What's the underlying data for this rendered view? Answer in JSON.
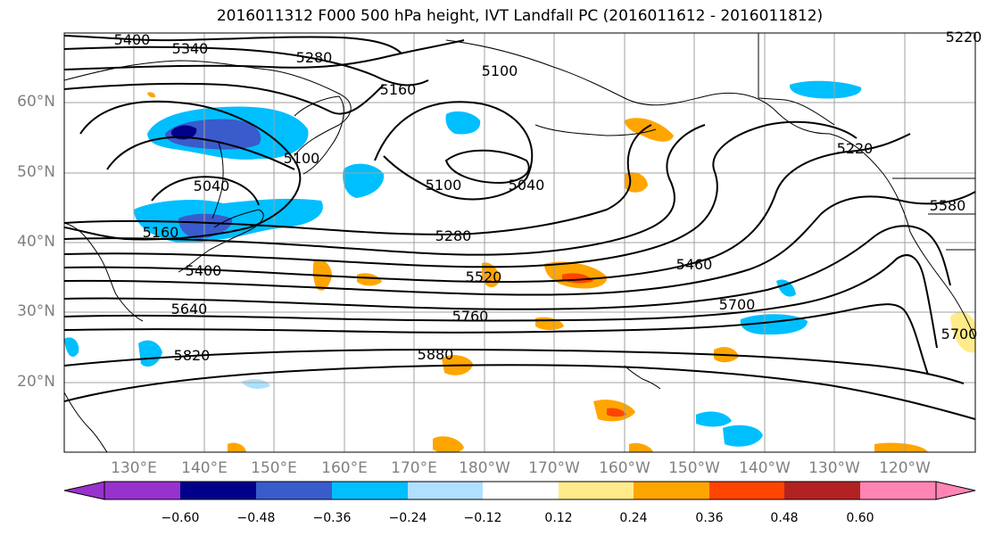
{
  "title": "2016011312 F000 500 hPa height, IVT Landfall PC (2016011612 - 2016011812)",
  "lat_labels": [
    "60°N",
    "50°N",
    "40°N",
    "30°N",
    "20°N"
  ],
  "lon_labels": [
    "130°E",
    "140°E",
    "150°E",
    "160°E",
    "170°E",
    "180°W",
    "170°W",
    "160°W",
    "150°W",
    "140°W",
    "130°W",
    "120°W"
  ],
  "contour_labels": [
    "5400",
    "5340",
    "5280",
    "5100",
    "5160",
    "5100",
    "5040",
    "5100",
    "5040",
    "5160",
    "5280",
    "5400",
    "5520",
    "5460",
    "5640",
    "5760",
    "5700",
    "5820",
    "5880",
    "5580",
    "5700",
    "5220",
    "5220"
  ],
  "colorbar": {
    "tick_labels": [
      "−0.60",
      "−0.48",
      "−0.36",
      "−0.24",
      "−0.12",
      "0.12",
      "0.24",
      "0.36",
      "0.48",
      "0.60"
    ],
    "colors": [
      "#9932cc",
      "#00008b",
      "#3a5bcc",
      "#00bfff",
      "#b0e0ff",
      "#ffffff",
      "#ffeb8a",
      "#ffa500",
      "#ff4500",
      "#b22222",
      "#ff85b5"
    ]
  }
}
